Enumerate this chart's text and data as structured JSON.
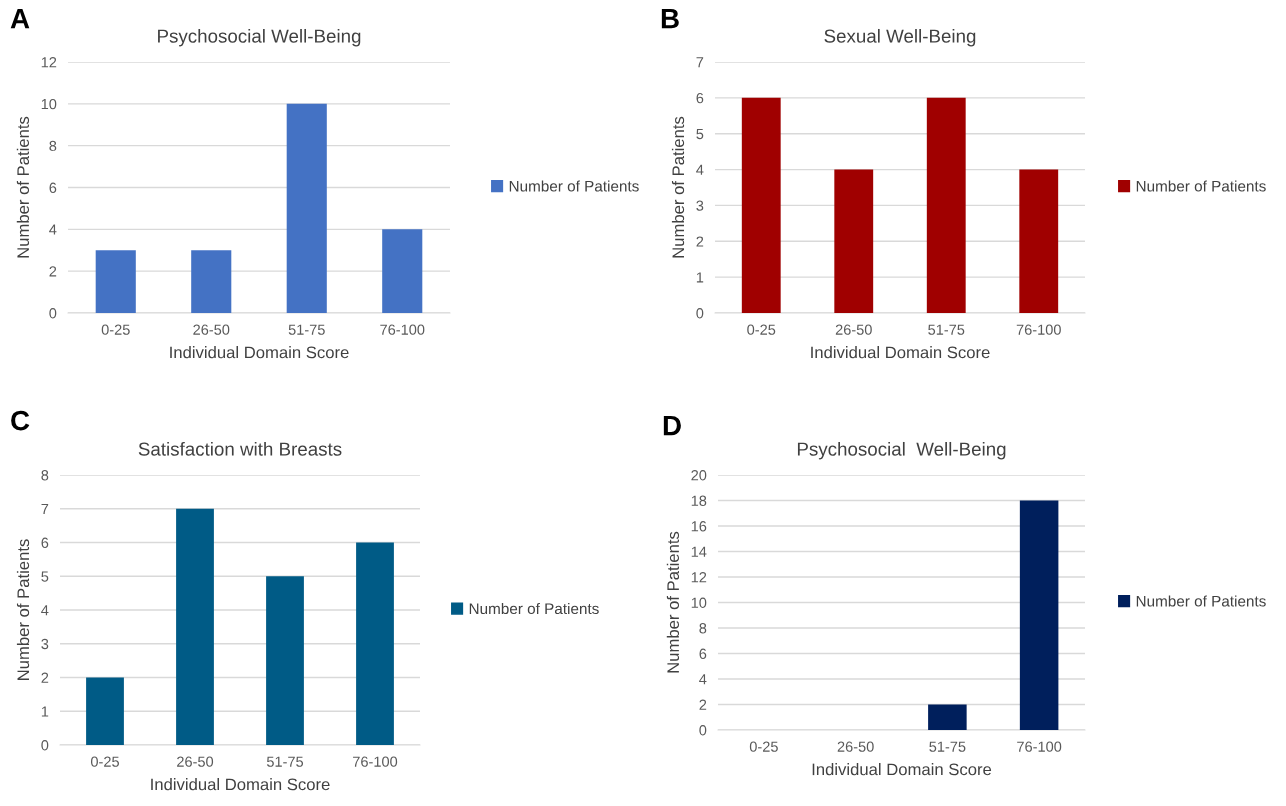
{
  "chart_data": [
    {
      "type": "bar",
      "title": "Psychosocial Well-Being",
      "xlabel": "Individual Domain Score",
      "ylabel": "Number of Patients",
      "annotations": [
        "A"
      ],
      "categories": [
        "0-25",
        "26-50",
        "51-75",
        "76-100"
      ],
      "series": [
        {
          "name": "Number of Patients",
          "color": "#4472c4",
          "values": [
            3,
            3,
            10,
            4
          ]
        }
      ],
      "ylim": [
        0,
        12
      ],
      "yticks": [
        0,
        2,
        4,
        6,
        8,
        10,
        12
      ],
      "grid": "y",
      "legend": "right"
    },
    {
      "type": "bar",
      "title": "Sexual Well-Being",
      "xlabel": "Individual Domain Score",
      "ylabel": "Number of Patients",
      "annotations": [
        "B"
      ],
      "categories": [
        "0-25",
        "26-50",
        "51-75",
        "76-100"
      ],
      "series": [
        {
          "name": "Number of Patients",
          "color": "#a00000",
          "values": [
            6,
            4,
            6,
            4
          ]
        }
      ],
      "ylim": [
        0,
        7
      ],
      "yticks": [
        0,
        1,
        2,
        3,
        4,
        5,
        6,
        7
      ],
      "grid": "y",
      "legend": "right"
    },
    {
      "type": "bar",
      "title": "Satisfaction with Breasts",
      "xlabel": "Individual Domain Score",
      "ylabel": "Number of Patients",
      "annotations": [
        "C"
      ],
      "categories": [
        "0-25",
        "26-50",
        "51-75",
        "76-100"
      ],
      "series": [
        {
          "name": "Number of Patients",
          "color": "#005b86",
          "values": [
            2,
            7,
            5,
            6
          ]
        }
      ],
      "ylim": [
        0,
        8
      ],
      "yticks": [
        0,
        1,
        2,
        3,
        4,
        5,
        6,
        7,
        8
      ],
      "grid": "y",
      "legend": "right"
    },
    {
      "type": "bar",
      "title": "Psychosocial  Well-Being",
      "xlabel": "Individual Domain Score",
      "ylabel": "Number of Patients",
      "annotations": [
        "D"
      ],
      "categories": [
        "0-25",
        "26-50",
        "51-75",
        "76-100"
      ],
      "series": [
        {
          "name": "Number of Patients",
          "color": "#001f5c",
          "values": [
            0,
            0,
            2,
            18
          ]
        }
      ],
      "ylim": [
        0,
        20
      ],
      "yticks": [
        0,
        2,
        4,
        6,
        8,
        10,
        12,
        14,
        16,
        18,
        20
      ],
      "grid": "y",
      "legend": "right"
    }
  ]
}
